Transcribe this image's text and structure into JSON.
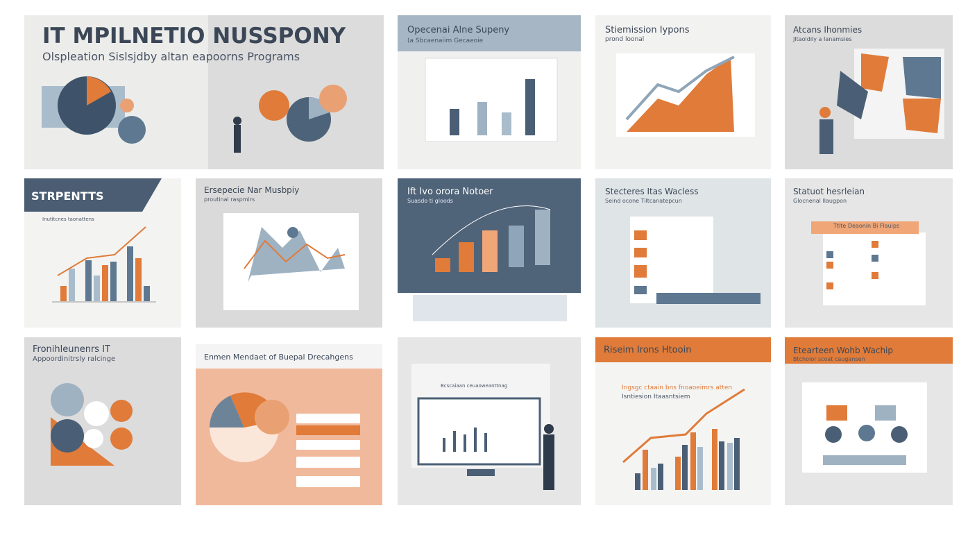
{
  "slides": [
    {
      "title": "IT MPILNETIO NUSSPONY",
      "subtitle": "Olspleation Sislsjdby altan eapoorns Programs"
    },
    {
      "title": "Opecenai Alne Supeny",
      "subtitle": "(a Sbcaenaiim Gecaeoie"
    },
    {
      "title": "Stiemission Iypons",
      "subtitle": "prond loonal"
    },
    {
      "title": "Atcans Ihonmies",
      "subtitle": "Jltaoldily a Ianamsies"
    },
    {
      "title": "STRPENTTS",
      "subtitle": "Inutitcnes taonattens"
    },
    {
      "title": "Ersepecie Nar Musbpiy",
      "subtitle": "proutinal raspmirs"
    },
    {
      "title": "Ift Ivo orora Notoer",
      "subtitle": "Suasdo ti gloods"
    },
    {
      "title": "Stecteres Itas Wacless",
      "subtitle": "Seind ocone Tiltcanatepcun"
    },
    {
      "title": "Statuot hesrleian",
      "subtitle": "Glocnenal Ilaugpon",
      "card": "Ttlte Deaonin Bi Flauips"
    },
    {
      "title": "Fronihleunenrs IT",
      "subtitle": "Appoordinitrsly ralcinge"
    },
    {
      "title": "Enmen Mendaet of Buepal Drecahgens"
    },
    {
      "title": "Bcscaiaan ceuaoweanttnag"
    },
    {
      "title": "Riseim Irons Htooin",
      "subtitle": "Ingsgc ctaain bns fnoaoeimrs atten",
      "note": "Isntiesion Itaasntsiem"
    },
    {
      "title": "Etearteen Wohb Wachip",
      "subtitle": "Btcholor scoat caugansen"
    }
  ]
}
